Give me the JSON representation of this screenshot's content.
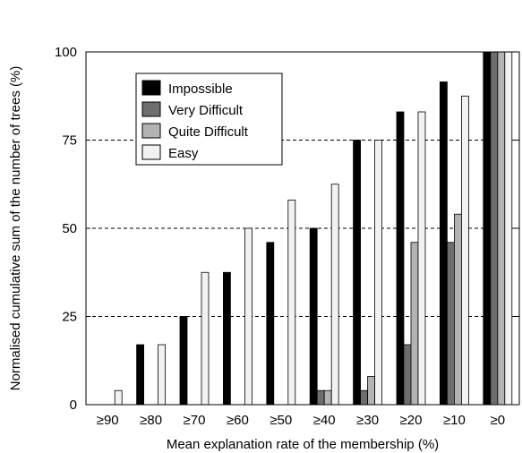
{
  "chart_data": {
    "type": "bar",
    "title": "",
    "xlabel": "Mean explanation rate of the membership (%)",
    "ylabel": "Normalised cumulative sum of the number of trees (%)",
    "ylim": [
      0,
      100
    ],
    "yticks": [
      "0",
      "25",
      "50",
      "75",
      "100"
    ],
    "grid": "horizontal dashed at 25, 50, 75",
    "legend_position": "top-left",
    "categories": [
      "≥90",
      "≥80",
      "≥70",
      "≥60",
      "≥50",
      "≥40",
      "≥30",
      "≥20",
      "≥10",
      "≥0"
    ],
    "series": [
      {
        "name": "Impossible",
        "color": "#000000",
        "values": [
          0,
          17,
          25,
          37.5,
          46,
          50,
          75,
          83,
          91.5,
          100
        ]
      },
      {
        "name": "Very Difficult",
        "color": "#6e6e6e",
        "values": [
          0,
          0,
          0,
          0,
          0,
          4,
          4,
          17,
          46,
          100
        ]
      },
      {
        "name": "Quite Difficult",
        "color": "#b3b3b3",
        "values": [
          0,
          0,
          0,
          0,
          0,
          4,
          8,
          46,
          54,
          100
        ]
      },
      {
        "name": "Easy",
        "color": "#f2f2f2",
        "values": [
          4,
          17,
          37.5,
          50,
          58,
          62.5,
          75,
          83,
          87.5,
          100
        ]
      }
    ]
  }
}
